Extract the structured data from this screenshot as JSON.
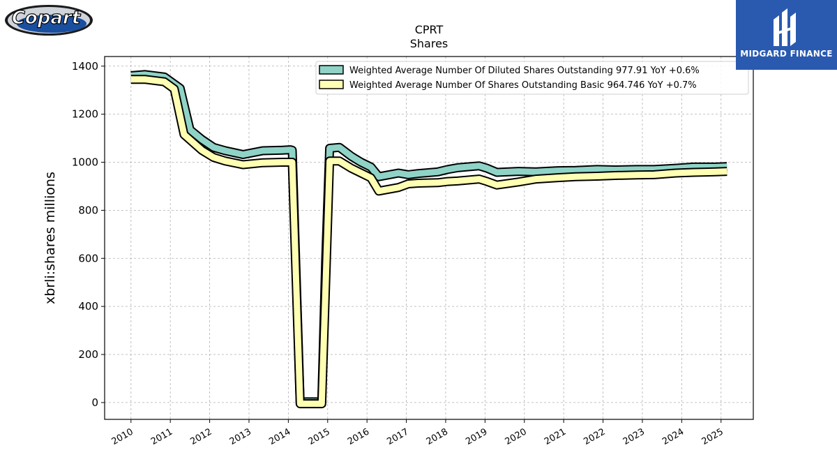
{
  "logo": {
    "text": "Copart",
    "color": "#1a4fa0"
  },
  "brand": {
    "name": "MIDGARD FINANCE",
    "color": "#2a5ab0"
  },
  "chart_data": {
    "type": "area",
    "title": "CPRT",
    "subtitle": "Shares",
    "ylabel": "xbrli:shares millions",
    "xlabel": "",
    "ylim": [
      -70,
      1440
    ],
    "xlim": [
      2009.33,
      2025.82
    ],
    "yticks": [
      0,
      200,
      400,
      600,
      800,
      1000,
      1200,
      1400
    ],
    "xticks": [
      2010,
      2011,
      2012,
      2013,
      2014,
      2015,
      2016,
      2017,
      2018,
      2019,
      2020,
      2021,
      2022,
      2023,
      2024,
      2025
    ],
    "grid": true,
    "legend_position": "top-right",
    "series": [
      {
        "name": "Weighted Average Number Of Diluted Shares Outstanding",
        "legend": "Weighted Average Number Of Diluted Shares Outstanding  977.91 YoY +0.6%",
        "color": "#8fd3c7",
        "x": [
          2010.0,
          2010.35,
          2010.85,
          2011.25,
          2011.5,
          2011.8,
          2012.1,
          2012.4,
          2012.85,
          2013.35,
          2013.85,
          2014.05,
          2014.1,
          2014.3,
          2014.4,
          2014.85,
          2014.95,
          2015.05,
          2015.3,
          2015.6,
          2015.85,
          2016.1,
          2016.3,
          2016.8,
          2017.05,
          2017.3,
          2017.8,
          2018.05,
          2018.3,
          2018.85,
          2019.05,
          2019.3,
          2019.85,
          2020.3,
          2020.85,
          2021.3,
          2021.85,
          2022.3,
          2022.85,
          2023.3,
          2023.85,
          2024.3,
          2024.85,
          2025.15
        ],
        "values": [
          1360,
          1365,
          1355,
          1308,
          1135,
          1095,
          1062,
          1048,
          1032,
          1048,
          1050,
          1052,
          1050,
          3,
          3,
          3,
          600,
          1058,
          1062,
          1025,
          1000,
          980,
          940,
          955,
          948,
          953,
          960,
          970,
          977,
          985,
          975,
          958,
          962,
          960,
          965,
          966,
          970,
          968,
          970,
          970,
          975,
          980,
          980,
          982
        ]
      },
      {
        "name": "Weighted Average Number Of Shares Outstanding Basic",
        "legend": "Weighted Average Number Of Shares Outstanding Basic  964.746 YoY +0.7%",
        "color": "#ffffb3",
        "x": [
          2010.0,
          2010.35,
          2010.85,
          2011.1,
          2011.35,
          2011.8,
          2012.1,
          2012.4,
          2012.85,
          2013.35,
          2013.85,
          2014.05,
          2014.1,
          2014.3,
          2014.4,
          2014.85,
          2014.95,
          2015.05,
          2015.3,
          2015.6,
          2015.85,
          2016.1,
          2016.3,
          2016.8,
          2017.05,
          2017.3,
          2017.8,
          2018.05,
          2018.3,
          2018.85,
          2019.05,
          2019.3,
          2019.85,
          2020.3,
          2020.85,
          2021.3,
          2021.85,
          2022.3,
          2022.85,
          2023.3,
          2023.85,
          2024.3,
          2024.85,
          2025.15
        ],
        "values": [
          1345,
          1345,
          1335,
          1305,
          1115,
          1050,
          1020,
          1005,
          990,
          998,
          1000,
          1000,
          1000,
          -5,
          -5,
          -5,
          500,
          1005,
          1005,
          975,
          955,
          935,
          880,
          895,
          910,
          913,
          915,
          920,
          922,
          930,
          920,
          905,
          918,
          930,
          936,
          940,
          942,
          945,
          947,
          948,
          955,
          958,
          960,
          962
        ]
      }
    ]
  }
}
